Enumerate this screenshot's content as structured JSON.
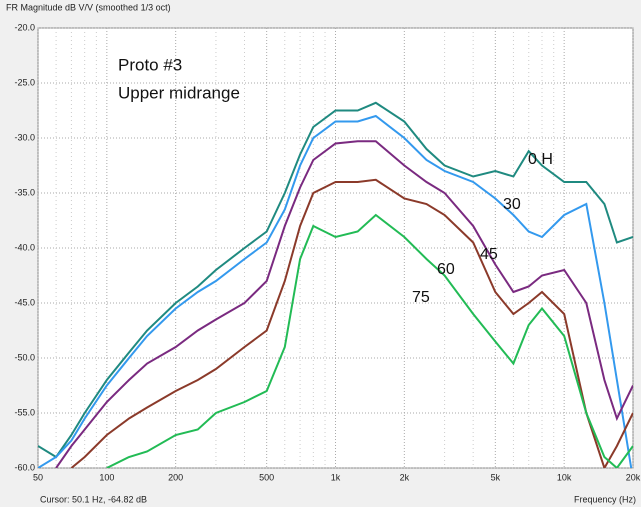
{
  "chart_data": {
    "type": "line",
    "title": "FR Magnitude dB V/V (smoothed 1/3 oct)",
    "annotations": [
      "Proto #3",
      "Upper midrange"
    ],
    "cursor": "Cursor: 50.1 Hz, -64.82 dB",
    "x_label": "Frequency (Hz)",
    "log_x": true,
    "grid": true,
    "xlim": [
      50,
      20000
    ],
    "ylim": [
      -60,
      -20
    ],
    "xticks": [
      50,
      100,
      200,
      500,
      {
        "value": 1000,
        "label": "1k"
      },
      {
        "value": 2000,
        "label": "2k"
      },
      {
        "value": 5000,
        "label": "5k"
      },
      {
        "value": 10000,
        "label": "10k"
      },
      {
        "value": 20000,
        "label": "20k"
      }
    ],
    "xminorticks": [
      60,
      70,
      80,
      90,
      300,
      400,
      600,
      700,
      800,
      900,
      3000,
      4000,
      6000,
      7000,
      8000,
      9000
    ],
    "yticks": [
      {
        "value": -20,
        "label": "-20.0"
      },
      {
        "value": -25,
        "label": "-25.0"
      },
      {
        "value": -30,
        "label": "-30.0"
      },
      {
        "value": -35,
        "label": "-35.0"
      },
      {
        "value": -40,
        "label": "-40.0"
      },
      {
        "value": -45,
        "label": "-45.0"
      },
      {
        "value": -50,
        "label": "-50.0"
      },
      {
        "value": -55,
        "label": "-55.0"
      },
      {
        "value": -60,
        "label": "-60.0"
      }
    ],
    "x": [
      50,
      60,
      70,
      80,
      100,
      125,
      150,
      200,
      250,
      300,
      400,
      500,
      600,
      700,
      800,
      1000,
      1250,
      1500,
      2000,
      2500,
      3000,
      4000,
      5000,
      6000,
      7000,
      8000,
      10000,
      12500,
      15000,
      17000,
      20000
    ],
    "series": [
      {
        "name": "0 H",
        "color": "#1f8a80",
        "values": [
          -58,
          -59,
          -57,
          -55,
          -52,
          -49.5,
          -47.5,
          -45,
          -43.5,
          -42,
          -40,
          -38.5,
          -35,
          -31.5,
          -29,
          -27.5,
          -27.5,
          -26.8,
          -28.5,
          -31,
          -32.5,
          -33.5,
          -33,
          -33.5,
          -31.2,
          -32.5,
          -34,
          -34,
          -36,
          -39.5,
          -39
        ]
      },
      {
        "name": "30",
        "color": "#3399ee",
        "values": [
          -60,
          -59,
          -57.5,
          -55.5,
          -52.5,
          -50,
          -48,
          -45.5,
          -44,
          -43,
          -41,
          -39.5,
          -36.5,
          -32.5,
          -30,
          -28.5,
          -28.5,
          -28,
          -30,
          -32,
          -33,
          -34,
          -35.5,
          -37,
          -38.5,
          -39,
          -37,
          -36,
          -45,
          -52,
          -61
        ]
      },
      {
        "name": "45",
        "color": "#7a2a80",
        "values": [
          null,
          -60,
          -58,
          -56.5,
          -54,
          -52,
          -50.5,
          -49,
          -47.5,
          -46.5,
          -45,
          -43,
          -38,
          -34.5,
          -32,
          -30.5,
          -30.3,
          -30.3,
          -32.5,
          -34,
          -35,
          -38,
          -41.5,
          -44,
          -43.5,
          -42.5,
          -42,
          -45,
          -52,
          -55.5,
          -52.5
        ]
      },
      {
        "name": "60",
        "color": "#8b3a2a",
        "values": [
          null,
          null,
          -60,
          -59,
          -57,
          -55.5,
          -54.5,
          -53,
          -52,
          -51,
          -49,
          -47.5,
          -43,
          -38,
          -35,
          -34,
          -34,
          -33.8,
          -35.5,
          -36,
          -37,
          -39.5,
          -44,
          -46,
          -45,
          -44,
          -46,
          -55,
          -60,
          -58,
          -55
        ]
      },
      {
        "name": "75",
        "color": "#22bb55",
        "values": [
          null,
          null,
          null,
          null,
          -60,
          -59,
          -58.5,
          -57,
          -56.5,
          -55,
          -54,
          -53,
          -49,
          -41,
          -38,
          -39,
          -38.5,
          -37,
          -39,
          -41,
          -42.5,
          -46,
          -48.5,
          -50.5,
          -47,
          -45.5,
          -48,
          -55,
          -59,
          -60,
          -58
        ]
      }
    ]
  }
}
